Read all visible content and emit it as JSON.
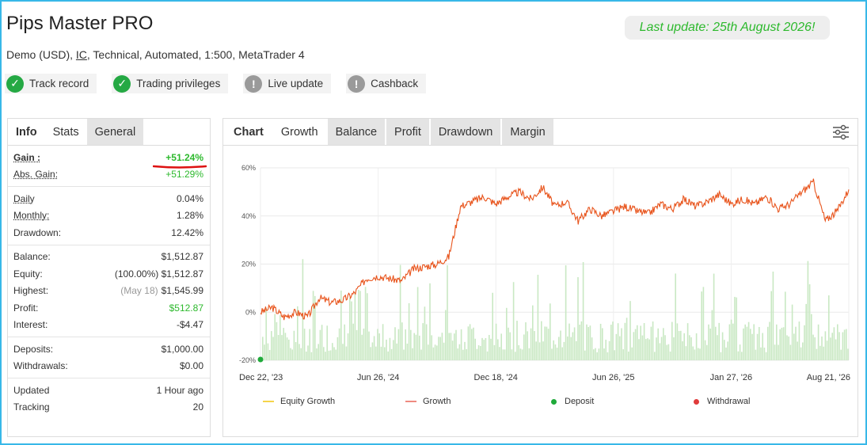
{
  "header": {
    "title": "Pips Master PRO",
    "account_type": "Demo (USD),",
    "broker": "IC",
    "details": ", Technical, Automated, 1:500, MetaTrader 4",
    "last_update": "Last update: 25th August 2026!"
  },
  "badges": [
    {
      "label": "Track record",
      "status": "ok"
    },
    {
      "label": "Trading privileges",
      "status": "ok"
    },
    {
      "label": "Live update",
      "status": "warning"
    },
    {
      "label": "Cashback",
      "status": "warning"
    }
  ],
  "left_tabs": [
    "Info",
    "Stats",
    "General"
  ],
  "stats": {
    "gain_label": "Gain :",
    "gain": "+51.24%",
    "abs_gain_label": "Abs. Gain:",
    "abs_gain": "+51.29%",
    "daily_label": "Daily",
    "daily": "0.04%",
    "monthly_label": "Monthly:",
    "monthly": "1.28%",
    "drawdown_label": "Drawdown:",
    "drawdown": "12.42%",
    "balance_label": "Balance:",
    "balance": "$1,512.87",
    "equity_label": "Equity:",
    "equity_pct": "(100.00%)",
    "equity": "$1,512.87",
    "highest_label": "Highest:",
    "highest_date": "(May 18)",
    "highest": "$1,545.99",
    "profit_label": "Profit:",
    "profit": "$512.87",
    "interest_label": "Interest:",
    "interest": "-$4.47",
    "deposits_label": "Deposits:",
    "deposits": "$1,000.00",
    "withdrawals_label": "Withdrawals:",
    "withdrawals": "$0.00",
    "updated_label": "Updated",
    "updated": "1 Hour ago",
    "tracking_label": "Tracking",
    "tracking": "20"
  },
  "chart_tabs": [
    "Chart",
    "Growth",
    "Balance",
    "Profit",
    "Drawdown",
    "Margin"
  ],
  "chart_data": {
    "type": "line",
    "ylim": [
      -20,
      60
    ],
    "yticks": [
      "60%",
      "40%",
      "20%",
      "0%",
      "-20%"
    ],
    "xticks": [
      "Dec 22, '23",
      "Jun 26, '24",
      "Dec 18, '24",
      "Jun 26, '25",
      "Jan 27, '26",
      "Aug 21, '26"
    ],
    "grid": true,
    "legend_position": "bottom",
    "series": [
      {
        "name": "Growth",
        "color": "#e8541c",
        "points": [
          [
            0,
            0
          ],
          [
            0.02,
            2
          ],
          [
            0.04,
            -2
          ],
          [
            0.06,
            0
          ],
          [
            0.08,
            -2
          ],
          [
            0.1,
            6
          ],
          [
            0.12,
            4
          ],
          [
            0.14,
            5
          ],
          [
            0.16,
            8
          ],
          [
            0.18,
            14
          ],
          [
            0.2,
            15
          ],
          [
            0.22,
            14
          ],
          [
            0.24,
            13
          ],
          [
            0.26,
            18
          ],
          [
            0.28,
            19
          ],
          [
            0.3,
            20
          ],
          [
            0.32,
            23
          ],
          [
            0.34,
            44
          ],
          [
            0.36,
            46
          ],
          [
            0.38,
            48
          ],
          [
            0.4,
            45
          ],
          [
            0.42,
            48
          ],
          [
            0.44,
            50
          ],
          [
            0.46,
            47
          ],
          [
            0.48,
            52
          ],
          [
            0.5,
            44
          ],
          [
            0.52,
            46
          ],
          [
            0.54,
            38
          ],
          [
            0.56,
            43
          ],
          [
            0.58,
            40
          ],
          [
            0.6,
            42
          ],
          [
            0.62,
            44
          ],
          [
            0.64,
            42
          ],
          [
            0.66,
            41
          ],
          [
            0.68,
            45
          ],
          [
            0.7,
            43
          ],
          [
            0.72,
            47
          ],
          [
            0.74,
            44
          ],
          [
            0.76,
            46
          ],
          [
            0.78,
            49
          ],
          [
            0.8,
            45
          ],
          [
            0.82,
            47
          ],
          [
            0.84,
            45
          ],
          [
            0.86,
            48
          ],
          [
            0.88,
            43
          ],
          [
            0.9,
            45
          ],
          [
            0.92,
            50
          ],
          [
            0.94,
            54
          ],
          [
            0.96,
            38
          ],
          [
            0.98,
            42
          ],
          [
            1.0,
            51
          ]
        ]
      }
    ],
    "bar_color": "#c9e8c3",
    "legend": [
      {
        "label": "Equity Growth",
        "kind": "line",
        "color": "#f5d44a"
      },
      {
        "label": "Growth",
        "kind": "line",
        "color": "#ef8a80"
      },
      {
        "label": "Deposit",
        "kind": "dot",
        "color": "#1faa3a"
      },
      {
        "label": "Withdrawal",
        "kind": "dot",
        "color": "#e03b3b"
      }
    ]
  }
}
